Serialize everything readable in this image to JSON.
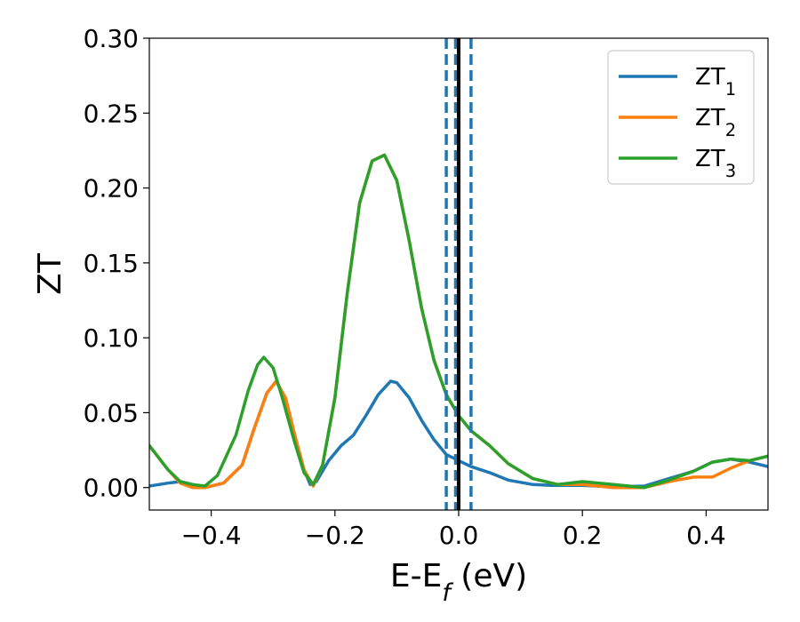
{
  "chart_data": {
    "type": "line",
    "xlabel": "E-E_f (eV)",
    "ylabel": "ZT",
    "xlim": [
      -0.5,
      0.5
    ],
    "ylim": [
      -0.015,
      0.3
    ],
    "x_ticks": [
      -0.4,
      -0.2,
      0.0,
      0.2,
      0.4
    ],
    "x_tick_labels": [
      "−0.4",
      "−0.2",
      "0.0",
      "0.2",
      "0.4"
    ],
    "y_ticks": [
      0.0,
      0.05,
      0.1,
      0.15,
      0.2,
      0.25,
      0.3
    ],
    "y_tick_labels": [
      "0.00",
      "0.05",
      "0.10",
      "0.15",
      "0.20",
      "0.25",
      "0.30"
    ],
    "grid": false,
    "legend_position": "top-right",
    "series": [
      {
        "name": "ZT_1",
        "color": "#1f77b4",
        "points": [
          [
            -0.5,
            0.001
          ],
          [
            -0.47,
            0.003
          ],
          [
            -0.45,
            0.004
          ],
          [
            -0.43,
            0.002
          ],
          [
            -0.41,
            0.0
          ],
          [
            -0.38,
            0.003
          ],
          [
            -0.35,
            0.015
          ],
          [
            -0.33,
            0.04
          ],
          [
            -0.31,
            0.063
          ],
          [
            -0.295,
            0.071
          ],
          [
            -0.28,
            0.06
          ],
          [
            -0.265,
            0.035
          ],
          [
            -0.25,
            0.012
          ],
          [
            -0.24,
            0.002
          ],
          [
            -0.23,
            0.004
          ],
          [
            -0.21,
            0.018
          ],
          [
            -0.19,
            0.028
          ],
          [
            -0.17,
            0.035
          ],
          [
            -0.15,
            0.048
          ],
          [
            -0.13,
            0.062
          ],
          [
            -0.11,
            0.071
          ],
          [
            -0.1,
            0.07
          ],
          [
            -0.08,
            0.06
          ],
          [
            -0.06,
            0.045
          ],
          [
            -0.04,
            0.032
          ],
          [
            -0.02,
            0.022
          ],
          [
            0.0,
            0.018
          ],
          [
            0.02,
            0.014
          ],
          [
            0.05,
            0.01
          ],
          [
            0.08,
            0.005
          ],
          [
            0.12,
            0.002
          ],
          [
            0.15,
            0.0015
          ],
          [
            0.2,
            0.0015
          ],
          [
            0.25,
            0.0005
          ],
          [
            0.3,
            0.001
          ],
          [
            0.34,
            0.006
          ],
          [
            0.38,
            0.011
          ],
          [
            0.41,
            0.017
          ],
          [
            0.44,
            0.019
          ],
          [
            0.47,
            0.017
          ],
          [
            0.5,
            0.014
          ]
        ]
      },
      {
        "name": "ZT_2",
        "color": "#ff7f0e",
        "points": [
          [
            -0.5,
            0.028
          ],
          [
            -0.47,
            0.012
          ],
          [
            -0.45,
            0.003
          ],
          [
            -0.43,
            0.0
          ],
          [
            -0.41,
            0.0
          ],
          [
            -0.38,
            0.003
          ],
          [
            -0.35,
            0.015
          ],
          [
            -0.33,
            0.04
          ],
          [
            -0.31,
            0.063
          ],
          [
            -0.295,
            0.071
          ],
          [
            -0.28,
            0.06
          ],
          [
            -0.265,
            0.035
          ],
          [
            -0.25,
            0.012
          ],
          [
            -0.235,
            0.001
          ],
          [
            -0.22,
            0.015
          ],
          [
            -0.2,
            0.06
          ],
          [
            -0.18,
            0.13
          ],
          [
            -0.16,
            0.19
          ],
          [
            -0.14,
            0.218
          ],
          [
            -0.12,
            0.222
          ],
          [
            -0.1,
            0.205
          ],
          [
            -0.08,
            0.165
          ],
          [
            -0.06,
            0.12
          ],
          [
            -0.04,
            0.085
          ],
          [
            -0.02,
            0.062
          ],
          [
            0.0,
            0.048
          ],
          [
            0.02,
            0.038
          ],
          [
            0.05,
            0.028
          ],
          [
            0.08,
            0.016
          ],
          [
            0.12,
            0.006
          ],
          [
            0.16,
            0.002
          ],
          [
            0.2,
            0.002
          ],
          [
            0.25,
            0.0
          ],
          [
            0.3,
            0.0
          ],
          [
            0.34,
            0.004
          ],
          [
            0.38,
            0.007
          ],
          [
            0.41,
            0.007
          ],
          [
            0.44,
            0.013
          ],
          [
            0.47,
            0.018
          ],
          [
            0.5,
            0.021
          ]
        ]
      },
      {
        "name": "ZT_3",
        "color": "#2ca02c",
        "points": [
          [
            -0.5,
            0.028
          ],
          [
            -0.47,
            0.012
          ],
          [
            -0.45,
            0.004
          ],
          [
            -0.43,
            0.002
          ],
          [
            -0.41,
            0.001
          ],
          [
            -0.39,
            0.008
          ],
          [
            -0.36,
            0.035
          ],
          [
            -0.34,
            0.065
          ],
          [
            -0.325,
            0.082
          ],
          [
            -0.315,
            0.087
          ],
          [
            -0.3,
            0.08
          ],
          [
            -0.285,
            0.06
          ],
          [
            -0.265,
            0.03
          ],
          [
            -0.25,
            0.01
          ],
          [
            -0.235,
            0.002
          ],
          [
            -0.22,
            0.015
          ],
          [
            -0.2,
            0.06
          ],
          [
            -0.18,
            0.13
          ],
          [
            -0.16,
            0.19
          ],
          [
            -0.14,
            0.218
          ],
          [
            -0.12,
            0.222
          ],
          [
            -0.1,
            0.205
          ],
          [
            -0.08,
            0.165
          ],
          [
            -0.06,
            0.12
          ],
          [
            -0.04,
            0.085
          ],
          [
            -0.02,
            0.062
          ],
          [
            0.0,
            0.048
          ],
          [
            0.02,
            0.038
          ],
          [
            0.05,
            0.028
          ],
          [
            0.08,
            0.016
          ],
          [
            0.12,
            0.006
          ],
          [
            0.16,
            0.002
          ],
          [
            0.2,
            0.004
          ],
          [
            0.25,
            0.002
          ],
          [
            0.3,
            0.0
          ],
          [
            0.34,
            0.005
          ],
          [
            0.38,
            0.011
          ],
          [
            0.41,
            0.017
          ],
          [
            0.44,
            0.019
          ],
          [
            0.47,
            0.018
          ],
          [
            0.5,
            0.021
          ]
        ]
      }
    ],
    "vertical_lines": [
      {
        "x": -0.02,
        "style": "dashed",
        "color": "#1f77b4"
      },
      {
        "x": -0.005,
        "style": "dashed",
        "color": "#1f77b4"
      },
      {
        "x": 0.02,
        "style": "dashed",
        "color": "#1f77b4"
      },
      {
        "x": 0.0,
        "style": "solid",
        "color": "#000000"
      }
    ]
  }
}
